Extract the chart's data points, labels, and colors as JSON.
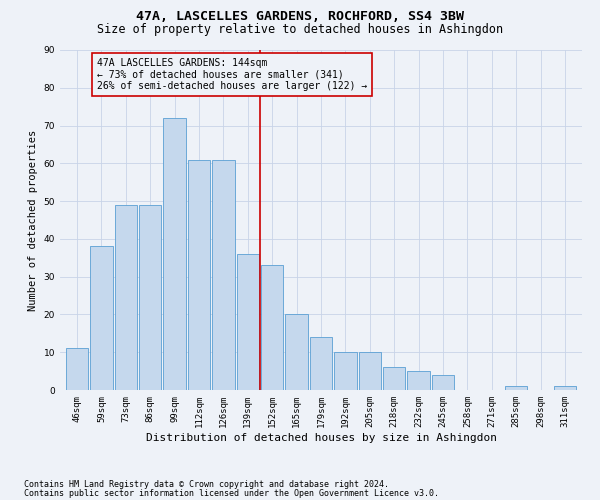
{
  "title": "47A, LASCELLES GARDENS, ROCHFORD, SS4 3BW",
  "subtitle": "Size of property relative to detached houses in Ashingdon",
  "xlabel": "Distribution of detached houses by size in Ashingdon",
  "ylabel": "Number of detached properties",
  "bar_labels": [
    "46sqm",
    "59sqm",
    "73sqm",
    "86sqm",
    "99sqm",
    "112sqm",
    "126sqm",
    "139sqm",
    "152sqm",
    "165sqm",
    "179sqm",
    "192sqm",
    "205sqm",
    "218sqm",
    "232sqm",
    "245sqm",
    "258sqm",
    "271sqm",
    "285sqm",
    "298sqm",
    "311sqm"
  ],
  "bar_values": [
    11,
    38,
    49,
    49,
    72,
    61,
    61,
    36,
    33,
    20,
    14,
    10,
    10,
    6,
    5,
    4,
    0,
    0,
    1,
    0,
    1
  ],
  "bar_color": "#c5d8ed",
  "bar_edge_color": "#5a9fd4",
  "vline_x_index": 7.5,
  "vline_color": "#cc0000",
  "annotation_text": "47A LASCELLES GARDENS: 144sqm\n← 73% of detached houses are smaller (341)\n26% of semi-detached houses are larger (122) →",
  "annotation_box_color": "#cc0000",
  "ylim": [
    0,
    90
  ],
  "yticks": [
    0,
    10,
    20,
    30,
    40,
    50,
    60,
    70,
    80,
    90
  ],
  "grid_color": "#c8d4e8",
  "footnote1": "Contains HM Land Registry data © Crown copyright and database right 2024.",
  "footnote2": "Contains public sector information licensed under the Open Government Licence v3.0.",
  "title_fontsize": 9.5,
  "subtitle_fontsize": 8.5,
  "xlabel_fontsize": 8,
  "ylabel_fontsize": 7.5,
  "tick_fontsize": 6.5,
  "annotation_fontsize": 7,
  "footnote_fontsize": 6,
  "background_color": "#eef2f8"
}
